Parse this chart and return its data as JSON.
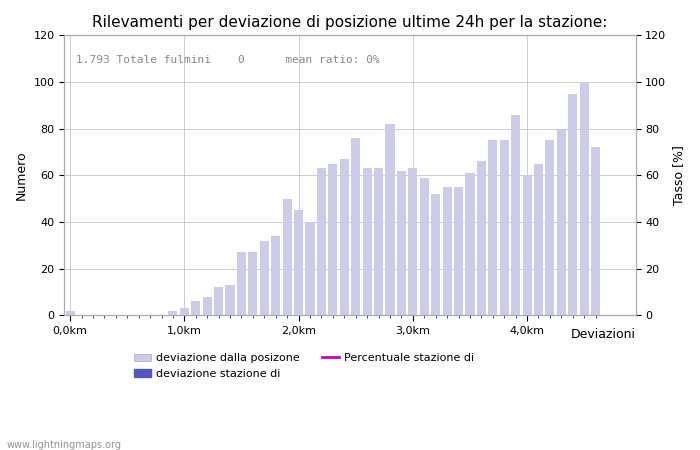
{
  "title": "Rilevamenti per deviazione di posizione ultime 24h per la stazione:",
  "subtitle": "1.793 Totale fulmini    0      mean ratio: 0%",
  "xlabel": "Deviazioni",
  "ylabel_left": "Numero",
  "ylabel_right": "Tasso [%]",
  "x_tick_labels": [
    "0,0km",
    "1,0km",
    "2,0km",
    "3,0km",
    "4,0km"
  ],
  "x_tick_positions": [
    0,
    10,
    20,
    30,
    40
  ],
  "ylim": [
    0,
    120
  ],
  "yticks": [
    0,
    20,
    40,
    60,
    80,
    100,
    120
  ],
  "bar_heights": [
    2,
    0,
    0,
    0,
    0,
    0,
    0,
    0,
    0,
    2,
    3,
    6,
    8,
    12,
    13,
    27,
    27,
    32,
    34,
    50,
    45,
    40,
    63,
    65,
    67,
    76,
    63,
    63,
    82,
    62,
    63,
    59,
    52,
    55,
    55,
    61,
    66,
    75,
    75,
    86,
    60,
    65,
    75,
    80,
    95,
    100,
    72
  ],
  "bar_color_light": "#cccce8",
  "bar_color_dark": "#5555bb",
  "bar_width": 0.8,
  "grid_color": "#bbbbbb",
  "background_color": "#ffffff",
  "legend_label_light": "deviazione dalla posizone",
  "legend_label_dark": "deviazione stazione di",
  "legend_label_line": "Percentuale stazione di",
  "line_color": "#cc00cc",
  "watermark": "www.lightningmaps.org",
  "title_fontsize": 11,
  "axis_fontsize": 9,
  "tick_fontsize": 8,
  "subtitle_fontsize": 8,
  "xlim_left": -0.5,
  "xlim_right": 49.5,
  "num_bars": 47
}
